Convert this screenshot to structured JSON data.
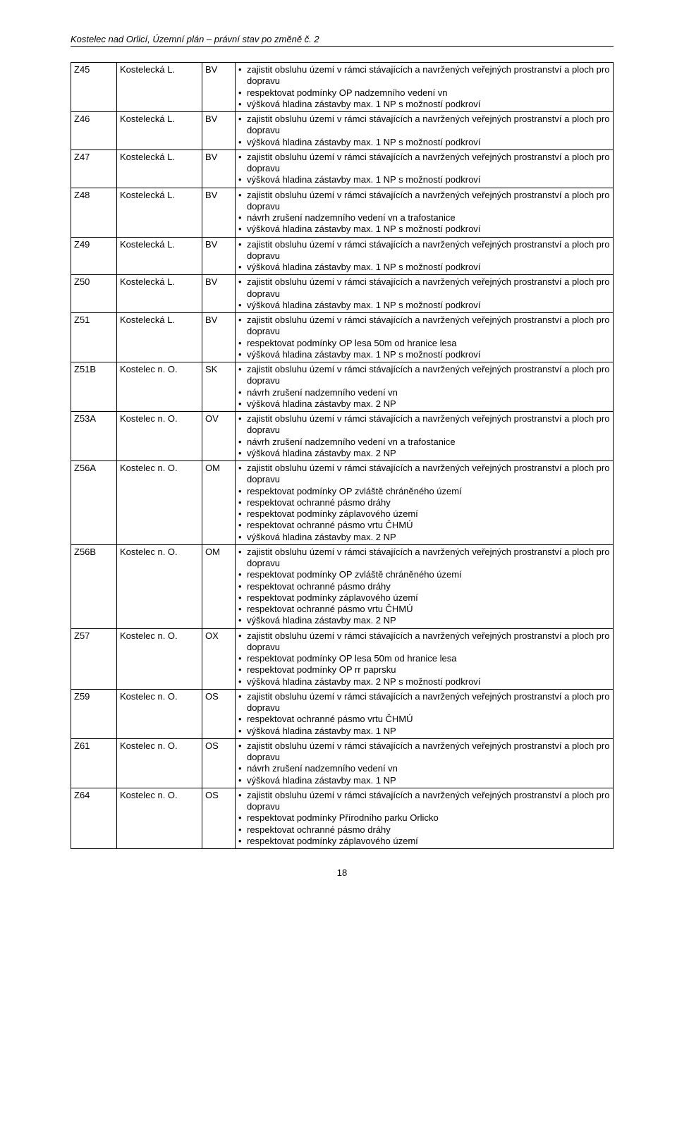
{
  "header": {
    "title": "Kostelec nad Orlicí,  Územní plán – právní stav po změně č. 2"
  },
  "table": {
    "columns": {
      "id_width": 56,
      "loc_width": 112,
      "code_width": 38
    },
    "rows": [
      {
        "id": "Z45",
        "loc": "Kostelecká L.",
        "code": "BV",
        "items": [
          "zajistit obsluhu území v rámci stávajících a navržených veřejných prostranství a ploch pro dopravu",
          "respektovat podmínky OP nadzemního vedení vn",
          "výšková hladina zástavby max. 1 NP s možností podkroví"
        ]
      },
      {
        "id": "Z46",
        "loc": "Kostelecká L.",
        "code": "BV",
        "items": [
          "zajistit obsluhu území v rámci stávajících a navržených veřejných prostranství a ploch pro dopravu",
          "výšková hladina zástavby max. 1 NP s možností podkroví"
        ]
      },
      {
        "id": "Z47",
        "loc": "Kostelecká L.",
        "code": "BV",
        "items": [
          "zajistit obsluhu území v rámci stávajících a navržených veřejných prostranství a ploch pro dopravu",
          "výšková hladina zástavby max. 1 NP s možností podkroví"
        ]
      },
      {
        "id": "Z48",
        "loc": "Kostelecká L.",
        "code": "BV",
        "items": [
          "zajistit obsluhu území v rámci stávajících a navržených veřejných prostranství a ploch pro dopravu",
          "návrh zrušení nadzemního vedení vn a trafostanice",
          "výšková hladina zástavby max. 1 NP s možností podkroví"
        ]
      },
      {
        "id": "Z49",
        "loc": "Kostelecká L.",
        "code": "BV",
        "items": [
          "zajistit obsluhu území v rámci stávajících a navržených veřejných prostranství a ploch pro dopravu",
          "výšková hladina zástavby max. 1 NP s možností podkroví"
        ]
      },
      {
        "id": "Z50",
        "loc": "Kostelecká L.",
        "code": "BV",
        "items": [
          "zajistit obsluhu území v rámci stávajících a navržených veřejných prostranství a ploch pro dopravu",
          "výšková hladina zástavby max. 1 NP s možností podkroví"
        ]
      },
      {
        "id": "Z51",
        "loc": "Kostelecká L.",
        "code": "BV",
        "items": [
          "zajistit obsluhu území v rámci stávajících a navržených veřejných prostranství a ploch pro dopravu",
          "respektovat podmínky OP lesa 50m od hranice lesa",
          "výšková hladina zástavby max. 1 NP s možností podkroví"
        ]
      },
      {
        "id": "Z51B",
        "loc": "Kostelec n. O.",
        "code": "SK",
        "items": [
          "zajistit obsluhu území v rámci stávajících a navržených veřejných prostranství a ploch pro dopravu",
          "návrh zrušení nadzemního vedení vn",
          "výšková hladina zástavby max. 2 NP"
        ]
      },
      {
        "id": "Z53A",
        "loc": "Kostelec n. O.",
        "code": "OV",
        "items": [
          "zajistit obsluhu území v rámci stávajících a navržených veřejných prostranství a ploch pro dopravu",
          "návrh zrušení nadzemního vedení vn a trafostanice",
          "výšková hladina zástavby max. 2 NP"
        ]
      },
      {
        "id": "Z56A",
        "loc": "Kostelec n. O.",
        "code": "OM",
        "items": [
          "zajistit obsluhu území v rámci stávajících a navržených veřejných prostranství a ploch pro dopravu",
          "respektovat podmínky OP zvláště chráněného území",
          "respektovat ochranné pásmo dráhy",
          "respektovat podmínky záplavového území",
          "respektovat ochranné pásmo vrtu ČHMÚ",
          "výšková hladina zástavby max. 2 NP"
        ]
      },
      {
        "id": "Z56B",
        "loc": "Kostelec n. O.",
        "code": "OM",
        "items": [
          "zajistit obsluhu území v rámci stávajících a navržených veřejných prostranství a ploch pro dopravu",
          "respektovat podmínky OP zvláště chráněného území",
          "respektovat ochranné pásmo dráhy",
          "respektovat podmínky záplavového území",
          "respektovat ochranné pásmo vrtu ČHMÚ",
          "výšková hladina zástavby max. 2 NP"
        ]
      },
      {
        "id": "Z57",
        "loc": "Kostelec n. O.",
        "code": "OX",
        "items": [
          "zajistit obsluhu území v rámci stávajících a navržených veřejných prostranství a ploch pro dopravu",
          "respektovat podmínky OP lesa 50m od hranice lesa",
          "respektovat podmínky OP rr paprsku",
          "výšková hladina zástavby max. 2 NP s možností podkroví"
        ]
      },
      {
        "id": "Z59",
        "loc": "Kostelec n. O.",
        "code": "OS",
        "items": [
          "zajistit obsluhu území v rámci stávajících a navržených veřejných prostranství a ploch pro dopravu",
          "respektovat ochranné pásmo vrtu ČHMÚ",
          "výšková hladina zástavby max. 1 NP"
        ]
      },
      {
        "id": "Z61",
        "loc": "Kostelec n. O.",
        "code": "OS",
        "items": [
          "zajistit obsluhu území v rámci stávajících a navržených veřejných prostranství a ploch pro dopravu",
          "návrh zrušení nadzemního vedení vn",
          "výšková hladina zástavby max. 1 NP"
        ]
      },
      {
        "id": "Z64",
        "loc": "Kostelec n. O.",
        "code": "OS",
        "items": [
          "zajistit obsluhu území v rámci stávajících a navržených veřejných prostranství a ploch pro dopravu",
          "respektovat podmínky Přírodního parku Orlicko",
          "respektovat ochranné pásmo dráhy",
          "respektovat podmínky záplavového území"
        ]
      }
    ]
  },
  "footer": {
    "page_number": "18"
  }
}
